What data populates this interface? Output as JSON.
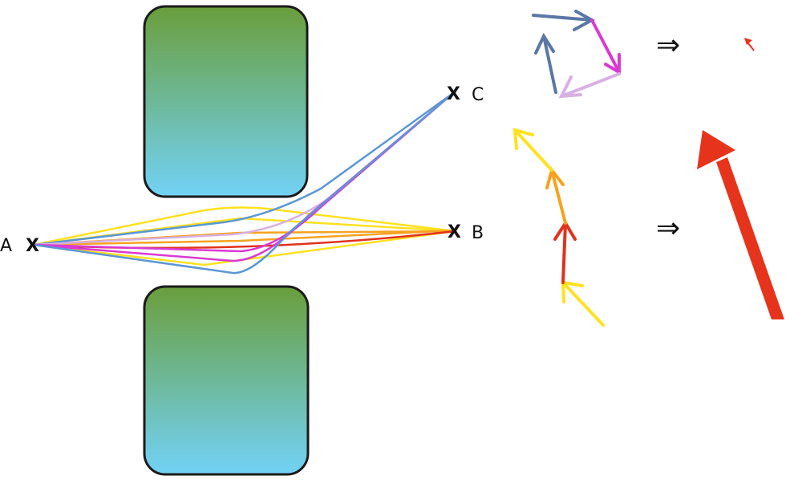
{
  "points": {
    "a": {
      "label": "A",
      "marker": "X"
    },
    "b": {
      "label": "B",
      "marker": "X"
    },
    "c": {
      "label": "C",
      "marker": "X"
    }
  },
  "implies_symbol": "⇒",
  "colors": {
    "barrier_top": "#6a9e3c",
    "barrier_bottom": "#72d2f6",
    "yellow": "#ffe11f",
    "orange": "#f7a21f",
    "red": "#e0321d",
    "magenta": "#d93ad3",
    "blue": "#5b97d6",
    "lilac": "#d8b0e3",
    "slate": "#5b77a5",
    "result_red": "#e6341c"
  }
}
